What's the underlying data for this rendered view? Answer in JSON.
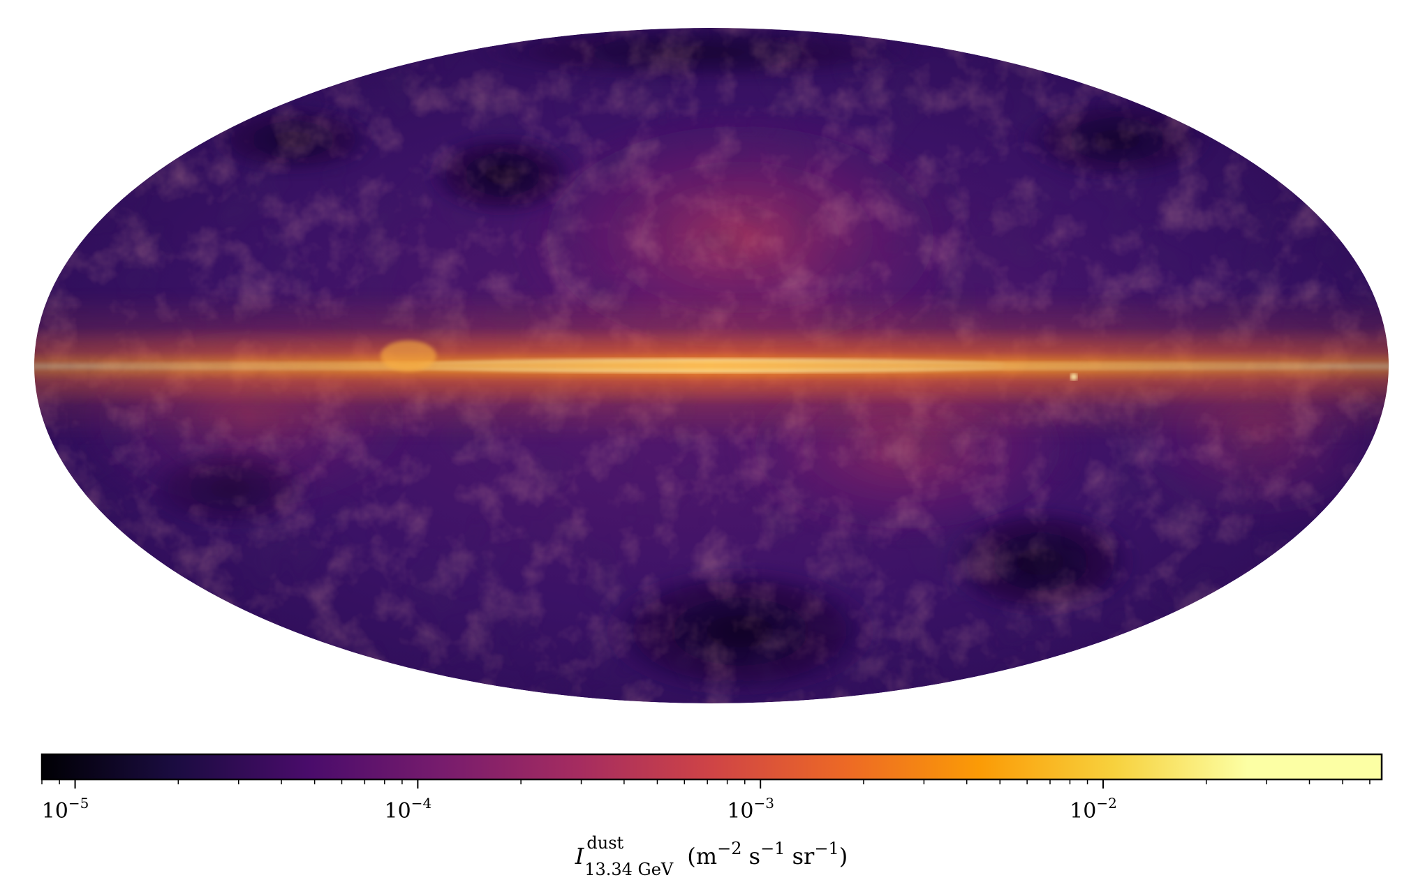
{
  "chart_data": {
    "type": "heatmap",
    "projection": "mollweide",
    "title": "",
    "colormap": "inferno",
    "scale": "log",
    "vmin": 8e-06,
    "vmax": 0.065,
    "colorbar": {
      "orientation": "horizontal",
      "placement": "bottom",
      "major_ticks": [
        {
          "value": 1e-05,
          "base": "10",
          "exp": "−5"
        },
        {
          "value": 0.0001,
          "base": "10",
          "exp": "−4"
        },
        {
          "value": 0.001,
          "base": "10",
          "exp": "−3"
        },
        {
          "value": 0.01,
          "base": "10",
          "exp": "−2"
        }
      ],
      "label": {
        "symbol": "I",
        "superscript": "dust",
        "subscript": "13.34 GeV",
        "units": "(m",
        "units_exp1": "−2",
        "units_s": " s",
        "units_exp2": "−1",
        "units_sr": " sr",
        "units_exp3": "−1",
        "units_close": ")"
      }
    },
    "features": [
      {
        "name": "galactic-plane",
        "level": 0.95
      },
      {
        "name": "northern-loop",
        "level": 0.55
      },
      {
        "name": "southern-dark-region",
        "level": 0.1
      }
    ]
  }
}
